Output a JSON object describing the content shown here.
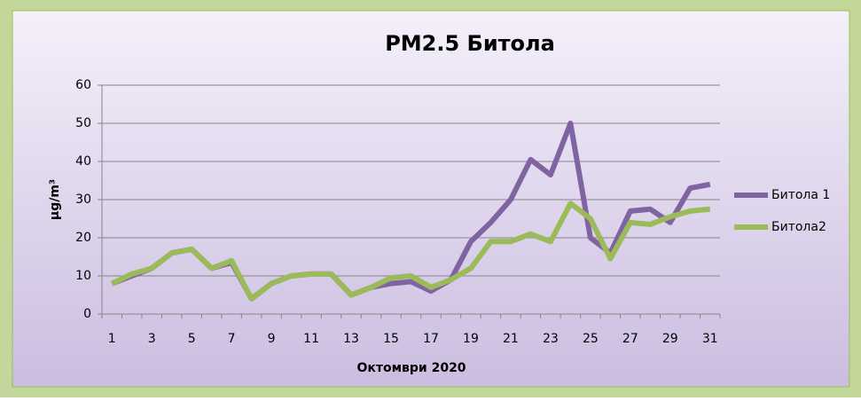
{
  "chart_data": {
    "type": "line",
    "title": "PM2.5 Битола",
    "xlabel": "Октомври 2020",
    "ylabel": "µg/m³",
    "categories": [
      "1",
      null,
      "3",
      null,
      "5",
      null,
      "7",
      null,
      "9",
      null,
      "11",
      null,
      "13",
      null,
      "15",
      null,
      "17",
      null,
      "19",
      null,
      "21",
      null,
      "23",
      null,
      "25",
      null,
      "27",
      null,
      "29",
      null,
      "31"
    ],
    "series": [
      {
        "name": "Битола 1",
        "color": "#8064a2",
        "values": [
          8,
          10,
          12,
          16,
          17,
          12,
          13.5,
          4,
          8,
          10,
          10.5,
          10.5,
          5,
          7,
          8,
          8.5,
          6,
          9,
          19,
          24,
          30,
          40.5,
          36.5,
          50,
          20,
          16,
          27,
          27.5,
          24,
          33,
          34
        ]
      },
      {
        "name": "Битола2",
        "color": "#9bbb59",
        "values": [
          8,
          10.5,
          12,
          16,
          17,
          12,
          14,
          4,
          8,
          10,
          10.5,
          10.5,
          5,
          7,
          9.5,
          10,
          7,
          9,
          12,
          19,
          19,
          21,
          19,
          29,
          25,
          14.5,
          24,
          23.5,
          25.5,
          27,
          27.5
        ]
      }
    ],
    "ylim": [
      0,
      60
    ],
    "yticks": [
      0,
      10,
      20,
      30,
      40,
      50,
      60
    ],
    "grid": true,
    "legend": "right"
  }
}
